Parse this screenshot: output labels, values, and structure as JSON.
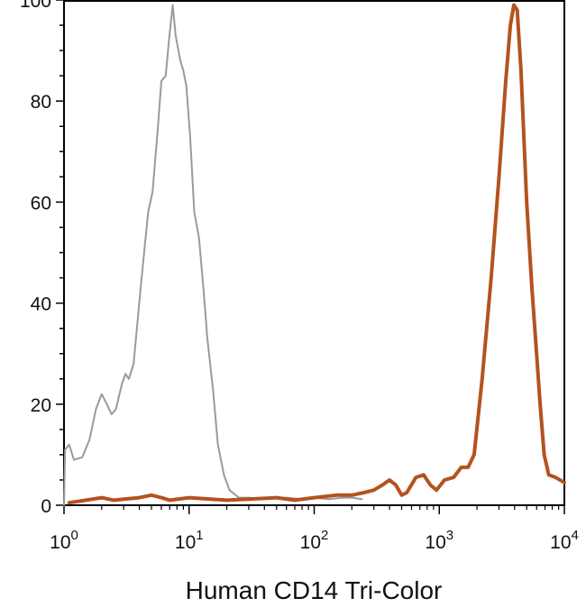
{
  "chart_data": {
    "type": "line",
    "title": "",
    "xlabel": "Human CD14  Tri-Color",
    "ylabel": "",
    "x_scale": "log",
    "xlim": [
      1,
      10000
    ],
    "ylim": [
      0,
      100
    ],
    "grid": false,
    "x_ticks": [
      {
        "value": 1,
        "base": "10",
        "exp": "0"
      },
      {
        "value": 10,
        "base": "10",
        "exp": "1"
      },
      {
        "value": 100,
        "base": "10",
        "exp": "2"
      },
      {
        "value": 1000,
        "base": "10",
        "exp": "3"
      },
      {
        "value": 10000,
        "base": "10",
        "exp": "4"
      }
    ],
    "y_ticks": [
      {
        "value": 0,
        "label": "0"
      },
      {
        "value": 20,
        "label": "20"
      },
      {
        "value": 40,
        "label": "40"
      },
      {
        "value": 60,
        "label": "60"
      },
      {
        "value": 80,
        "label": "80"
      },
      {
        "value": 100,
        "label": "100"
      }
    ],
    "series": [
      {
        "color": "#9a9a9a",
        "line_width": 2,
        "points": [
          [
            1.0,
            0
          ],
          [
            1.02,
            11
          ],
          [
            1.1,
            12
          ],
          [
            1.2,
            9
          ],
          [
            1.4,
            9.5
          ],
          [
            1.6,
            13
          ],
          [
            1.8,
            19
          ],
          [
            2.0,
            22
          ],
          [
            2.2,
            20
          ],
          [
            2.4,
            18
          ],
          [
            2.6,
            19
          ],
          [
            2.9,
            24
          ],
          [
            3.1,
            26
          ],
          [
            3.3,
            25
          ],
          [
            3.6,
            28
          ],
          [
            4.1,
            43
          ],
          [
            4.7,
            58
          ],
          [
            5.1,
            62
          ],
          [
            5.6,
            74
          ],
          [
            6.0,
            84
          ],
          [
            6.5,
            85
          ],
          [
            6.9,
            92
          ],
          [
            7.4,
            99
          ],
          [
            7.8,
            93
          ],
          [
            8.5,
            88
          ],
          [
            9.0,
            86
          ],
          [
            9.5,
            83
          ],
          [
            10.2,
            73
          ],
          [
            11.0,
            58
          ],
          [
            12.0,
            53
          ],
          [
            13.0,
            43
          ],
          [
            14.0,
            33
          ],
          [
            15.5,
            23
          ],
          [
            17.0,
            12
          ],
          [
            19.0,
            6
          ],
          [
            21.0,
            3
          ],
          [
            25.0,
            1.5
          ],
          [
            30.0,
            1.5
          ],
          [
            40.0,
            1.2
          ],
          [
            60.0,
            1.5
          ],
          [
            80.0,
            1.2
          ],
          [
            100.0,
            1.5
          ],
          [
            130.0,
            1.2
          ],
          [
            170.0,
            1.5
          ],
          [
            200.0,
            1.5
          ],
          [
            240.0,
            1.2
          ]
        ]
      },
      {
        "color": "#b5521e",
        "line_width": 4,
        "points": [
          [
            1.1,
            0.5
          ],
          [
            1.5,
            1
          ],
          [
            2.0,
            1.5
          ],
          [
            2.5,
            1
          ],
          [
            3.0,
            1.2
          ],
          [
            4.0,
            1.5
          ],
          [
            5.0,
            2
          ],
          [
            6.0,
            1.5
          ],
          [
            7.0,
            1
          ],
          [
            10.0,
            1.5
          ],
          [
            15.0,
            1.2
          ],
          [
            20.0,
            1
          ],
          [
            30.0,
            1.2
          ],
          [
            50.0,
            1.5
          ],
          [
            70.0,
            1
          ],
          [
            100.0,
            1.5
          ],
          [
            150.0,
            2
          ],
          [
            200.0,
            2
          ],
          [
            250.0,
            2.5
          ],
          [
            300.0,
            3
          ],
          [
            350.0,
            4
          ],
          [
            400.0,
            5
          ],
          [
            450.0,
            4
          ],
          [
            500.0,
            2
          ],
          [
            550.0,
            2.5
          ],
          [
            650.0,
            5.5
          ],
          [
            750.0,
            6
          ],
          [
            850.0,
            4
          ],
          [
            950.0,
            3
          ],
          [
            1100.0,
            5
          ],
          [
            1300.0,
            5.5
          ],
          [
            1500.0,
            7.5
          ],
          [
            1700.0,
            7.5
          ],
          [
            1900.0,
            10
          ],
          [
            2200.0,
            25
          ],
          [
            2600.0,
            45
          ],
          [
            3000.0,
            65
          ],
          [
            3400.0,
            84
          ],
          [
            3700.0,
            95
          ],
          [
            3950.0,
            99
          ],
          [
            4200.0,
            98
          ],
          [
            4500.0,
            86
          ],
          [
            5000.0,
            60
          ],
          [
            5500.0,
            43
          ],
          [
            6000.0,
            30
          ],
          [
            6400.0,
            20
          ],
          [
            6900.0,
            10
          ],
          [
            7500.0,
            6
          ],
          [
            8500.0,
            5.5
          ],
          [
            10000.0,
            4.5
          ]
        ]
      }
    ]
  }
}
